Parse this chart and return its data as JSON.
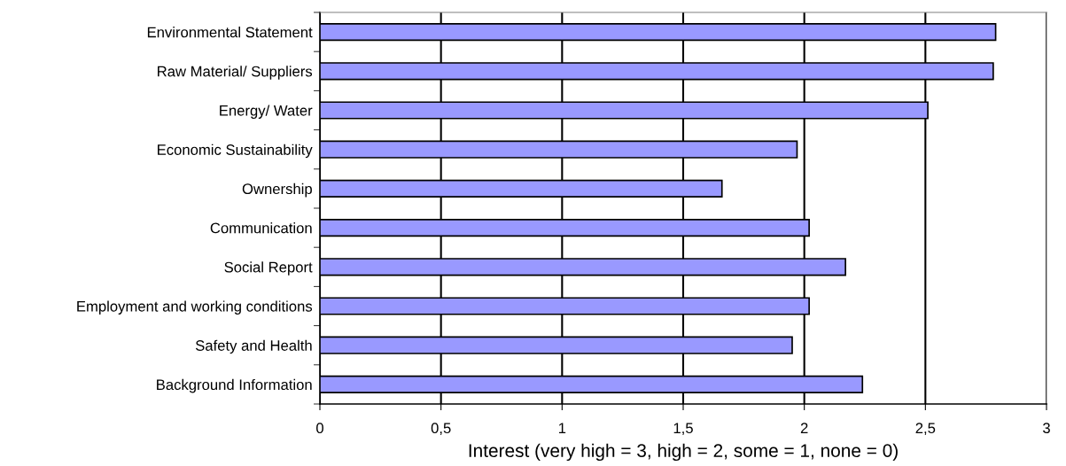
{
  "chart_data": {
    "type": "bar",
    "orientation": "horizontal",
    "xlabel": "Interest (very high = 3, high = 2, some = 1, none = 0)",
    "categories": [
      "Environmental Statement",
      "Raw Material/ Suppliers",
      "Energy/ Water",
      "Economic Sustainability",
      "Ownership",
      "Communication",
      "Social Report",
      "Employment and working conditions",
      "Safety and Health",
      "Background Information"
    ],
    "values": [
      2.79,
      2.78,
      2.51,
      1.97,
      1.66,
      2.02,
      2.17,
      2.02,
      1.95,
      2.24
    ],
    "color": "#9999ff",
    "xlim": [
      0,
      3
    ],
    "xticks": [
      0,
      {
        "value": 0.5,
        "label": "0,5"
      },
      1,
      {
        "value": 1.5,
        "label": "1,5"
      },
      2,
      {
        "value": 2.5,
        "label": "2,5"
      },
      3
    ],
    "grid": "x",
    "legend": false
  }
}
